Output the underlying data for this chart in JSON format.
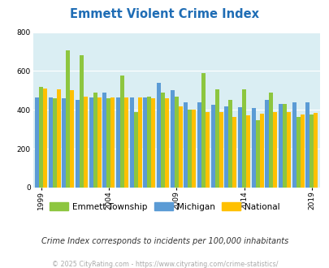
{
  "title": "Emmett Violent Crime Index",
  "years": [
    1999,
    2000,
    2001,
    2002,
    2003,
    2004,
    2005,
    2006,
    2007,
    2008,
    2009,
    2010,
    2011,
    2012,
    2013,
    2014,
    2015,
    2016,
    2017,
    2018,
    2019
  ],
  "emmett": [
    520,
    460,
    705,
    680,
    490,
    460,
    575,
    390,
    470,
    490,
    470,
    400,
    590,
    505,
    450,
    505,
    345,
    490,
    430,
    365,
    375
  ],
  "michigan": [
    465,
    465,
    460,
    450,
    465,
    490,
    465,
    465,
    465,
    540,
    500,
    440,
    440,
    425,
    420,
    415,
    410,
    450,
    430,
    440,
    440
  ],
  "national": [
    510,
    505,
    500,
    470,
    465,
    465,
    465,
    465,
    460,
    460,
    420,
    400,
    390,
    390,
    365,
    370,
    380,
    390,
    390,
    375,
    385
  ],
  "emmett_color": "#8dc63f",
  "michigan_color": "#5b9bd5",
  "national_color": "#ffc000",
  "bg_color": "#daeef3",
  "title_color": "#1f6db5",
  "subtitle": "Crime Index corresponds to incidents per 100,000 inhabitants",
  "footer": "© 2025 CityRating.com - https://www.cityrating.com/crime-statistics/",
  "ylim": [
    0,
    800
  ],
  "yticks": [
    0,
    200,
    400,
    600,
    800
  ],
  "xtick_years": [
    1999,
    2004,
    2009,
    2014,
    2019
  ]
}
